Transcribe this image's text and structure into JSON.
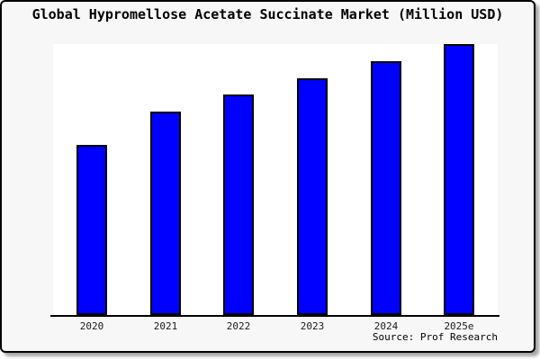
{
  "frame": {
    "background": "#f7f7f7",
    "border_color": "#000000",
    "shadow_color": "#a0a0a0"
  },
  "chart_data": {
    "type": "bar",
    "title": "Global Hypromellose Acetate Succinate Market (Million USD)",
    "categories": [
      "2020",
      "2021",
      "2022",
      "2023",
      "2024",
      "2025e"
    ],
    "values": [
      189,
      226,
      245,
      263,
      282,
      301
    ],
    "ylim": [
      0,
      302
    ],
    "xlabel": "",
    "ylabel": "",
    "y_axis_visible": false,
    "grid": false,
    "legend": "none",
    "bar_color": "#0000ff",
    "bar_edge_color": "#000000",
    "plot_background": "#ffffff",
    "source": "Source: Prof Research"
  }
}
